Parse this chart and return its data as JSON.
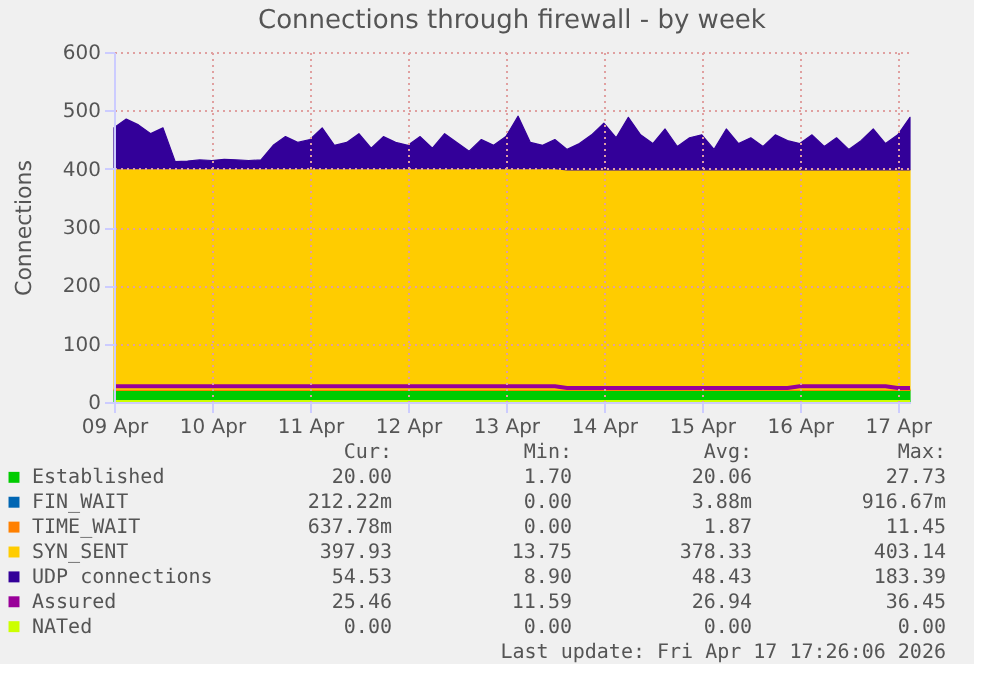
{
  "chart_data": {
    "type": "area",
    "title": "Connections through firewall - by week",
    "ylabel": "Connections",
    "stacked": true,
    "grid": true,
    "legend": "bottom",
    "ylim": [
      0,
      600
    ],
    "yticks": [
      0,
      100,
      200,
      300,
      400,
      500,
      600
    ],
    "xlim": [
      "2026-04-09T00:00",
      "2026-04-17T03:00"
    ],
    "xticks": [
      {
        "value": "2026-04-09",
        "label": "09 Apr"
      },
      {
        "value": "2026-04-10",
        "label": "10 Apr"
      },
      {
        "value": "2026-04-11",
        "label": "11 Apr"
      },
      {
        "value": "2026-04-12",
        "label": "12 Apr"
      },
      {
        "value": "2026-04-13",
        "label": "13 Apr"
      },
      {
        "value": "2026-04-14",
        "label": "14 Apr"
      },
      {
        "value": "2026-04-15",
        "label": "15 Apr"
      },
      {
        "value": "2026-04-16",
        "label": "16 Apr"
      },
      {
        "value": "2026-04-17",
        "label": "17 Apr"
      }
    ],
    "x": [
      "2026-04-09T00:00",
      "2026-04-09T03:00",
      "2026-04-09T06:00",
      "2026-04-09T09:00",
      "2026-04-09T12:00",
      "2026-04-09T15:00",
      "2026-04-09T18:00",
      "2026-04-09T21:00",
      "2026-04-10T00:00",
      "2026-04-10T03:00",
      "2026-04-10T06:00",
      "2026-04-10T09:00",
      "2026-04-10T12:00",
      "2026-04-10T15:00",
      "2026-04-10T18:00",
      "2026-04-10T21:00",
      "2026-04-11T00:00",
      "2026-04-11T03:00",
      "2026-04-11T06:00",
      "2026-04-11T09:00",
      "2026-04-11T12:00",
      "2026-04-11T15:00",
      "2026-04-11T18:00",
      "2026-04-11T21:00",
      "2026-04-12T00:00",
      "2026-04-12T03:00",
      "2026-04-12T06:00",
      "2026-04-12T09:00",
      "2026-04-12T12:00",
      "2026-04-12T15:00",
      "2026-04-12T18:00",
      "2026-04-12T21:00",
      "2026-04-13T00:00",
      "2026-04-13T03:00",
      "2026-04-13T06:00",
      "2026-04-13T09:00",
      "2026-04-13T12:00",
      "2026-04-13T15:00",
      "2026-04-13T18:00",
      "2026-04-13T21:00",
      "2026-04-14T00:00",
      "2026-04-14T03:00",
      "2026-04-14T06:00",
      "2026-04-14T09:00",
      "2026-04-14T12:00",
      "2026-04-14T15:00",
      "2026-04-14T18:00",
      "2026-04-14T21:00",
      "2026-04-15T00:00",
      "2026-04-15T03:00",
      "2026-04-15T06:00",
      "2026-04-15T09:00",
      "2026-04-15T12:00",
      "2026-04-15T15:00",
      "2026-04-15T18:00",
      "2026-04-15T21:00",
      "2026-04-16T00:00",
      "2026-04-16T03:00",
      "2026-04-16T06:00",
      "2026-04-16T09:00",
      "2026-04-16T12:00",
      "2026-04-16T15:00",
      "2026-04-16T18:00",
      "2026-04-16T21:00",
      "2026-04-17T00:00",
      "2026-04-17T03:00"
    ],
    "series": [
      {
        "name": "Established",
        "color": "#00cc00",
        "values": [
          20,
          20,
          20,
          20,
          20,
          20,
          20,
          20,
          20,
          20,
          20,
          20,
          20,
          20,
          20,
          20,
          20,
          20,
          20,
          20,
          20,
          20,
          20,
          20,
          20,
          20,
          20,
          20,
          20,
          20,
          20,
          20,
          20,
          20,
          20,
          20,
          20,
          20,
          20,
          20,
          20,
          20,
          20,
          20,
          20,
          20,
          20,
          20,
          20,
          20,
          20,
          20,
          20,
          20,
          20,
          20,
          20,
          20,
          20,
          20,
          20,
          20,
          20,
          20,
          20,
          20
        ]
      },
      {
        "name": "FIN_WAIT",
        "color": "#0066b3",
        "values": [
          null,
          null,
          null,
          null,
          null,
          null,
          null,
          null,
          null,
          null,
          null,
          null,
          null,
          null,
          null,
          null,
          null,
          null,
          null,
          null,
          null,
          null,
          null,
          null,
          null,
          null,
          null,
          null,
          null,
          null,
          null,
          null,
          null,
          null,
          null,
          null,
          null,
          null,
          null,
          null,
          null,
          null,
          null,
          null,
          null,
          null,
          null,
          null,
          null,
          null,
          null,
          null,
          null,
          null,
          null,
          null,
          null,
          null,
          null,
          null,
          null,
          null,
          null,
          null,
          null,
          null
        ]
      },
      {
        "name": "TIME_WAIT",
        "color": "#ff8000",
        "values": [
          2,
          2,
          2,
          2,
          2,
          2,
          2,
          2,
          2,
          2,
          2,
          2,
          2,
          2,
          2,
          2,
          2,
          2,
          2,
          2,
          2,
          2,
          2,
          2,
          2,
          2,
          2,
          2,
          2,
          2,
          2,
          2,
          2,
          2,
          2,
          2,
          2,
          2,
          2,
          2,
          2,
          2,
          2,
          2,
          2,
          2,
          2,
          2,
          2,
          2,
          2,
          2,
          2,
          2,
          2,
          2,
          2,
          2,
          2,
          2,
          2,
          2,
          2,
          2,
          2,
          2
        ]
      },
      {
        "name": "SYN_SENT",
        "color": "#ffcc00",
        "values": [
          378,
          378,
          378,
          378,
          378,
          378,
          378,
          378,
          378,
          378,
          378,
          378,
          378,
          378,
          378,
          378,
          378,
          378,
          378,
          378,
          378,
          378,
          378,
          378,
          378,
          378,
          378,
          378,
          378,
          378,
          378,
          378,
          378,
          378,
          378,
          378,
          378,
          376,
          376,
          376,
          376,
          376,
          376,
          376,
          376,
          376,
          376,
          376,
          376,
          376,
          376,
          376,
          376,
          376,
          376,
          376,
          376,
          376,
          376,
          376,
          376,
          376,
          376,
          376,
          376,
          376
        ]
      },
      {
        "name": "UDP connections",
        "color": "#330099",
        "values": [
          70,
          85,
          75,
          60,
          70,
          12,
          13,
          15,
          14,
          16,
          15,
          14,
          15,
          40,
          55,
          45,
          50,
          70,
          40,
          45,
          60,
          35,
          55,
          45,
          40,
          55,
          35,
          60,
          45,
          30,
          50,
          40,
          55,
          90,
          45,
          40,
          50,
          35,
          45,
          60,
          80,
          55,
          90,
          60,
          45,
          70,
          40,
          55,
          60,
          35,
          70,
          45,
          55,
          40,
          60,
          50,
          45,
          60,
          40,
          55,
          35,
          50,
          70,
          45,
          60,
          90
        ]
      },
      {
        "name": "Assured",
        "color": "#990099",
        "type": "line",
        "values": [
          27,
          27,
          27,
          27,
          27,
          27,
          27,
          27,
          27,
          27,
          27,
          27,
          27,
          27,
          27,
          27,
          27,
          27,
          27,
          27,
          27,
          27,
          27,
          27,
          27,
          27,
          27,
          27,
          27,
          27,
          27,
          27,
          27,
          27,
          27,
          27,
          27,
          24,
          24,
          24,
          24,
          24,
          24,
          24,
          24,
          24,
          24,
          24,
          24,
          24,
          24,
          24,
          24,
          24,
          24,
          24,
          27,
          27,
          27,
          27,
          27,
          27,
          27,
          27,
          24,
          24
        ]
      },
      {
        "name": "NATed",
        "color": "#ccff00",
        "type": "line",
        "values": [
          0,
          0,
          0,
          0,
          0,
          0,
          0,
          0,
          0,
          0,
          0,
          0,
          0,
          0,
          0,
          0,
          0,
          0,
          0,
          0,
          0,
          0,
          0,
          0,
          0,
          0,
          0,
          0,
          0,
          0,
          0,
          0,
          0,
          0,
          0,
          0,
          0,
          0,
          0,
          0,
          0,
          0,
          0,
          0,
          0,
          0,
          0,
          0,
          0,
          0,
          0,
          0,
          0,
          0,
          0,
          0,
          0,
          0,
          0,
          0,
          0,
          0,
          0,
          0,
          0,
          0
        ]
      }
    ],
    "annotations": [
      "Cur:",
      "Min:",
      "Avg:",
      "Max:",
      "20.00",
      "1.70",
      "20.06",
      "27.73",
      "212.22m",
      "0.00",
      "3.88m",
      "916.67m",
      "637.78m",
      "0.00",
      "1.87",
      "11.45",
      "397.93",
      "13.75",
      "378.33",
      "403.14",
      "54.53",
      "8.90",
      "48.43",
      "183.39",
      "25.46",
      "11.59",
      "26.94",
      "36.45",
      "0.00",
      "0.00",
      "0.00",
      "0.00",
      "Last update: Fri Apr 17 17:26:06 2026"
    ]
  }
}
